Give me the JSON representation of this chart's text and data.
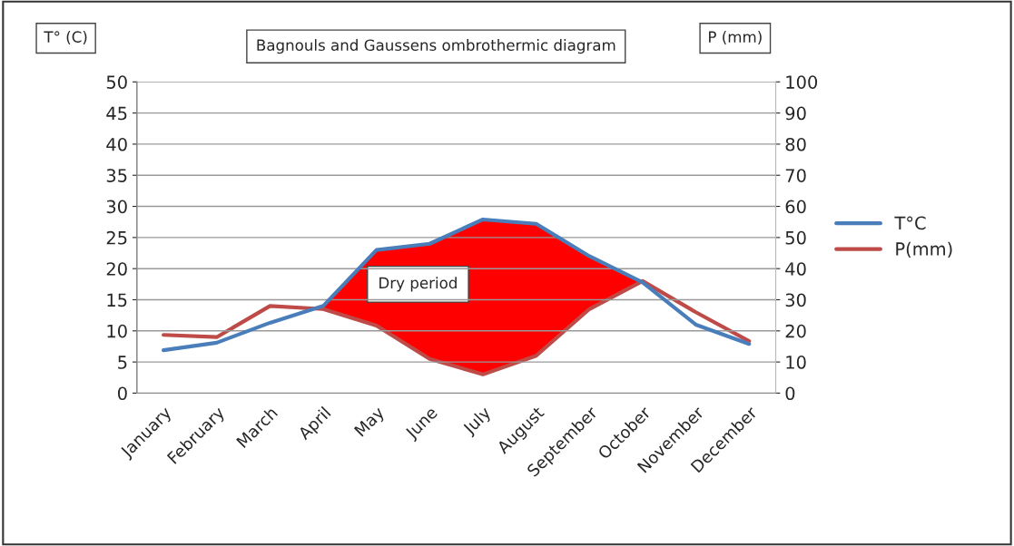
{
  "chart_data": {
    "type": "line",
    "title": "Bagnouls and Gaussens ombrothermic diagram",
    "ylabel": "T° (C)",
    "y2label": "P (mm)",
    "categories": [
      "January",
      "February",
      "March",
      "April",
      "May",
      "June",
      "July",
      "August",
      "September",
      "October",
      "November",
      "December"
    ],
    "series": [
      {
        "name": "T°C",
        "color": "#4a7ebb",
        "values": [
          6.9,
          8.1,
          11.3,
          14,
          23,
          24,
          27.9,
          27.2,
          22,
          17.8,
          11,
          7.9
        ]
      },
      {
        "name": "P(mm)",
        "color": "#be4b48",
        "axis": "y2",
        "values": [
          18.7,
          18,
          28,
          27,
          21.7,
          11,
          6,
          12,
          27,
          36,
          26,
          16.7
        ]
      }
    ],
    "ylim": [
      0,
      50
    ],
    "yticks": [
      0,
      5,
      10,
      15,
      20,
      25,
      30,
      35,
      40,
      45,
      50
    ],
    "y2lim": [
      0,
      100
    ],
    "y2ticks": [
      0,
      10,
      20,
      30,
      40,
      50,
      60,
      70,
      80,
      90,
      100
    ],
    "annotations": [
      "Dry period"
    ],
    "grid": "y",
    "legend": "right",
    "marker": "none",
    "line_style": "solid"
  }
}
